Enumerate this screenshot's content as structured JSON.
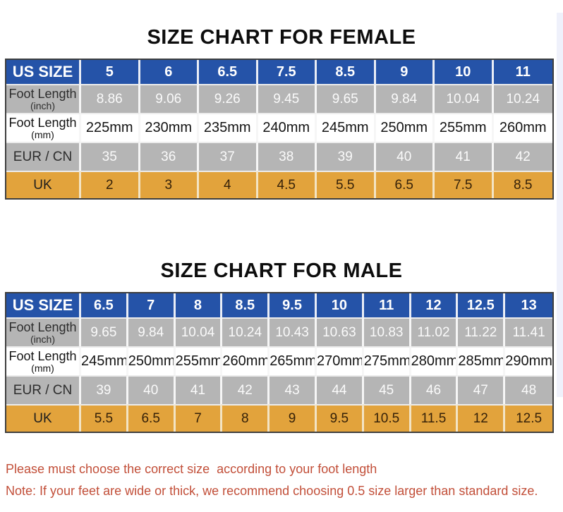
{
  "titles": {
    "female": "SIZE CHART FOR FEMALE",
    "male": "SIZE CHART FOR MALE"
  },
  "colors": {
    "header_blue": "#2553a8",
    "row_gray": "#b5b5b5",
    "row_orange": "#e2a33c",
    "note_red": "#c24f39",
    "table_border": "#3f3f3f"
  },
  "tables": {
    "female": {
      "header_label": "US SIZE",
      "header_values": [
        "5",
        "6",
        "6.5",
        "7.5",
        "8.5",
        "9",
        "10",
        "11"
      ],
      "rows": [
        {
          "label": "Foot Length",
          "sub": "(inch)",
          "style": "gray",
          "values": [
            "8.86",
            "9.06",
            "9.26",
            "9.45",
            "9.65",
            "9.84",
            "10.04",
            "10.24"
          ]
        },
        {
          "label": "Foot Length",
          "sub": "(mm)",
          "style": "white",
          "values": [
            "225mm",
            "230mm",
            "235mm",
            "240mm",
            "245mm",
            "250mm",
            "255mm",
            "260mm"
          ]
        },
        {
          "label": "EUR / CN",
          "sub": "",
          "style": "gray",
          "values": [
            "35",
            "36",
            "37",
            "38",
            "39",
            "40",
            "41",
            "42"
          ]
        },
        {
          "label": "UK",
          "sub": "",
          "style": "orange",
          "values": [
            "2",
            "3",
            "4",
            "4.5",
            "5.5",
            "6.5",
            "7.5",
            "8.5"
          ]
        }
      ]
    },
    "male": {
      "header_label": "US SIZE",
      "header_values": [
        "6.5",
        "7",
        "8",
        "8.5",
        "9.5",
        "10",
        "11",
        "12",
        "12.5",
        "13"
      ],
      "rows": [
        {
          "label": "Foot Length",
          "sub": "(inch)",
          "style": "gray",
          "values": [
            "9.65",
            "9.84",
            "10.04",
            "10.24",
            "10.43",
            "10.63",
            "10.83",
            "11.02",
            "11.22",
            "11.41"
          ]
        },
        {
          "label": "Foot Length",
          "sub": "(mm)",
          "style": "white",
          "values": [
            "245mm",
            "250mm",
            "255mm",
            "260mm",
            "265mm",
            "270mm",
            "275mm",
            "280mm",
            "285mm",
            "290mm"
          ]
        },
        {
          "label": "EUR / CN",
          "sub": "",
          "style": "gray",
          "values": [
            "39",
            "40",
            "41",
            "42",
            "43",
            "44",
            "45",
            "46",
            "47",
            "48"
          ]
        },
        {
          "label": "UK",
          "sub": "",
          "style": "orange",
          "values": [
            "5.5",
            "6.5",
            "7",
            "8",
            "9",
            "9.5",
            "10.5",
            "11.5",
            "12",
            "12.5"
          ]
        }
      ]
    }
  },
  "notes": {
    "line1": "Please must choose the correct size  according to your foot length",
    "line2": "Note: If your feet are wide or thick, we recommend choosing 0.5 size larger than standard size."
  }
}
